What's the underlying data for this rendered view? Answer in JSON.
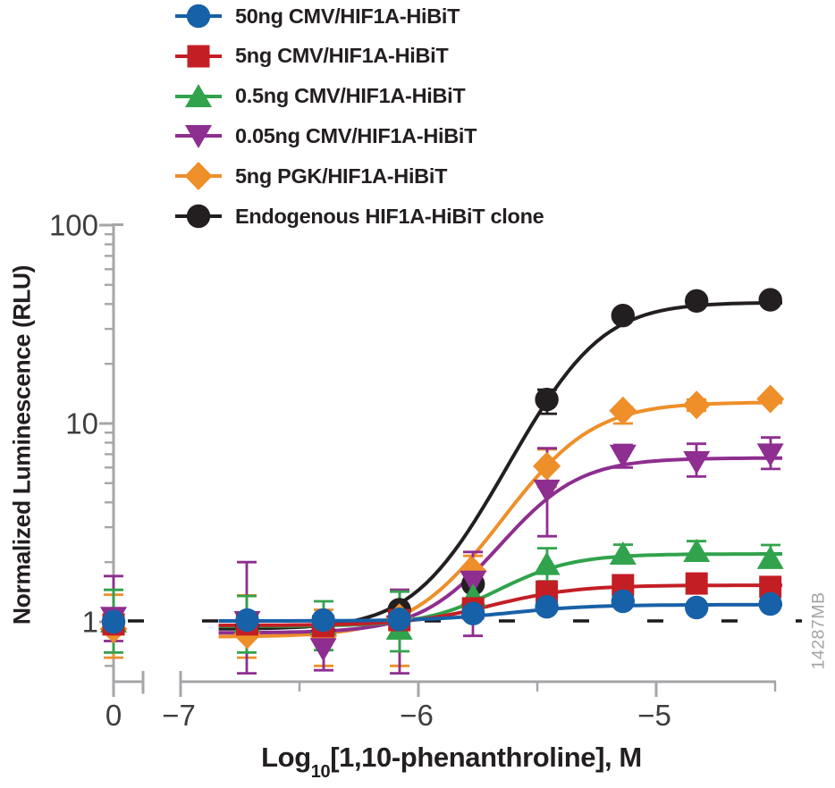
{
  "figure": {
    "watermark": "14287MB",
    "background": "#ffffff"
  },
  "colors": {
    "axis": "#A6A6A9",
    "tick_label": "#3E3E40",
    "text": "#231F20",
    "baseline_dash": "#1A1A1A",
    "watermark": "#A4A4A7"
  },
  "legend": {
    "items": [
      {
        "label": "50ng CMV/HIF1A-HiBiT",
        "color": "#1761A8",
        "marker": "circle"
      },
      {
        "label": "5ng CMV/HIF1A-HiBiT",
        "color": "#C41E25",
        "marker": "square"
      },
      {
        "label": "0.5ng CMV/HIF1A-HiBiT",
        "color": "#31A34C",
        "marker": "triangle-up"
      },
      {
        "label": "0.05ng CMV/HIF1A-HiBiT",
        "color": "#8E2E90",
        "marker": "triangle-down"
      },
      {
        "label": "5ng PGK/HIF1A-HiBiT",
        "color": "#EE8F2A",
        "marker": "diamond"
      },
      {
        "label": "Endogenous HIF1A-HiBiT clone",
        "color": "#231F20",
        "marker": "circle"
      }
    ]
  },
  "axes": {
    "y": {
      "title": "Normalized Luminescence (RLU)",
      "scale": "log",
      "major": [
        {
          "value": 100,
          "label": "100"
        },
        {
          "value": 10,
          "label": "10"
        },
        {
          "value": 1,
          "label": "1"
        }
      ],
      "minor": [
        90,
        80,
        70,
        60,
        50,
        40,
        30,
        20,
        9,
        8,
        7,
        6,
        5,
        4,
        3,
        2,
        0.9,
        0.8,
        0.7,
        0.6
      ]
    },
    "x": {
      "title_main": "Log",
      "title_sub": "10",
      "title_rest": "[1,10-phenanthroline], M",
      "control_label": "0",
      "has_break": true,
      "major": [
        {
          "value": -7,
          "label": "−7"
        },
        {
          "value": -6,
          "label": "−6"
        },
        {
          "value": -5,
          "label": "−5"
        }
      ],
      "minor": [
        -6.5,
        -5.5,
        -4.5
      ]
    }
  },
  "chart_data": {
    "type": "line",
    "title": "",
    "xlabel": "Log10[1,10-phenanthroline], M",
    "ylabel": "Normalized Luminescence (RLU)",
    "y_scale": "log",
    "y_range": [
      0.5,
      105
    ],
    "x_range": [
      -7,
      -4.4
    ],
    "x_axis_break_before": -7,
    "control_x_label": "0",
    "baseline_y": 1.0,
    "x": [
      -6.72,
      -6.4,
      -6.08,
      -5.77,
      -5.46,
      -5.14,
      -4.83,
      -4.52
    ],
    "series": [
      {
        "key": "cmv-50ng",
        "name": "50ng CMV/HIF1A-HiBiT",
        "color": "#1761A8",
        "marker": "circle",
        "control_value": 1.0,
        "control_err": [
          0,
          0
        ],
        "values": [
          1.02,
          1.02,
          1.03,
          1.1,
          1.19,
          1.27,
          1.18,
          1.23
        ],
        "err_up": [
          0,
          0,
          0,
          0,
          0,
          0,
          0,
          0
        ],
        "err_dn": [
          0,
          0,
          0,
          0,
          0,
          0,
          0,
          0
        ],
        "fit": {
          "bottom": 1.01,
          "top": 1.22,
          "log_ec50": -5.6,
          "hill": 2.5
        }
      },
      {
        "key": "cmv-5ng",
        "name": "5ng CMV/HIF1A-HiBiT",
        "color": "#C41E25",
        "marker": "square",
        "control_value": 0.97,
        "control_err": [
          0,
          0
        ],
        "values": [
          0.97,
          0.95,
          1.02,
          1.17,
          1.42,
          1.53,
          1.56,
          1.5
        ],
        "err_up": [
          0,
          0,
          0,
          0,
          0,
          0,
          0,
          0
        ],
        "err_dn": [
          0,
          0,
          0,
          0,
          0,
          0,
          0,
          0
        ],
        "fit": {
          "bottom": 0.96,
          "top": 1.53,
          "log_ec50": -5.65,
          "hill": 2.5
        }
      },
      {
        "key": "cmv-0p5ng",
        "name": "0.5ng CMV/HIF1A-HiBiT",
        "color": "#31A34C",
        "marker": "triangle-up",
        "control_value": 1.0,
        "control_err": [
          0.45,
          0.3
        ],
        "values": [
          1.0,
          0.97,
          0.92,
          1.35,
          1.95,
          2.2,
          2.27,
          2.09
        ],
        "err_up": [
          0.35,
          0.3,
          0.5,
          0.25,
          0.4,
          0.25,
          0.28,
          0.35
        ],
        "err_dn": [
          0.3,
          0.25,
          0.21,
          0.2,
          0.35,
          0.15,
          0.2,
          0.15
        ],
        "fit": {
          "bottom": 0.95,
          "top": 2.2,
          "log_ec50": -5.6,
          "hill": 2.8
        }
      },
      {
        "key": "cmv-0p05ng",
        "name": "0.05ng CMV/HIF1A-HiBiT",
        "color": "#8E2E90",
        "marker": "triangle-down",
        "control_value": 1.05,
        "control_err": [
          0.65,
          0.25
        ],
        "values": [
          1.0,
          0.73,
          0.95,
          1.6,
          4.6,
          6.9,
          6.4,
          7.0
        ],
        "err_up": [
          1.0,
          0.3,
          0.5,
          0.65,
          2.9,
          0.9,
          1.5,
          1.5
        ],
        "err_dn": [
          0.45,
          0.16,
          0.4,
          0.75,
          1.9,
          0.9,
          1.0,
          1.1
        ],
        "fit": {
          "bottom": 0.88,
          "top": 6.7,
          "log_ec50": -5.5,
          "hill": 2.8
        }
      },
      {
        "key": "pgk-5ng",
        "name": "5ng PGK/HIF1A-HiBiT",
        "color": "#EE8F2A",
        "marker": "diamond",
        "control_value": 0.92,
        "control_err": [
          0.45,
          0.26
        ],
        "values": [
          0.86,
          0.85,
          1.05,
          1.8,
          6.1,
          11.6,
          12.4,
          13.3
        ],
        "err_up": [
          0.5,
          0.3,
          0.4,
          0.35,
          1.3,
          0.5,
          0.8,
          0
        ],
        "err_dn": [
          0.2,
          0.25,
          0.45,
          0.3,
          1.3,
          1.6,
          0.8,
          0
        ],
        "fit": {
          "bottom": 0.84,
          "top": 12.8,
          "log_ec50": -5.42,
          "hill": 2.6
        }
      },
      {
        "key": "endogenous-clone",
        "name": "Endogenous HIF1A-HiBiT clone",
        "color": "#231F20",
        "marker": "circle",
        "control_value": 1.0,
        "control_err": [
          0,
          0
        ],
        "values": [
          0.95,
          0.9,
          1.15,
          1.55,
          13.2,
          35.0,
          41.5,
          42.0
        ],
        "err_up": [
          0,
          0,
          0,
          0,
          1.6,
          0,
          0,
          0
        ],
        "err_dn": [
          0,
          0,
          0,
          0,
          2.0,
          0,
          0,
          0
        ],
        "fit": {
          "bottom": 0.92,
          "top": 40.8,
          "log_ec50": -5.33,
          "hill": 2.8
        }
      }
    ]
  }
}
